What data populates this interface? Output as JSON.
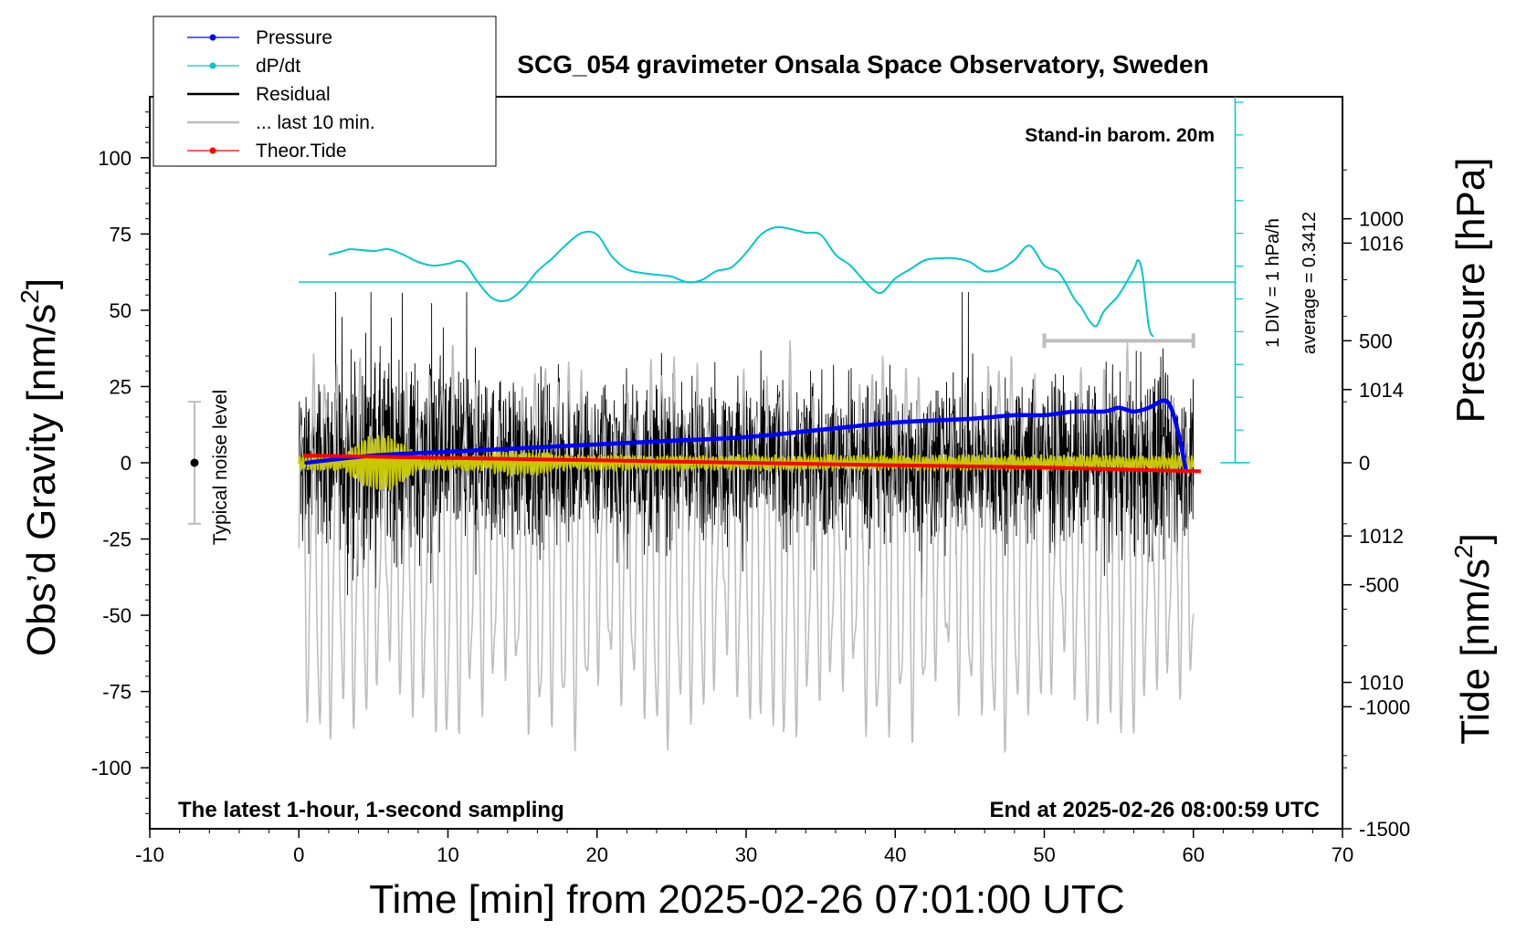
{
  "chart_data": {
    "type": "line",
    "title": "SCG_054 gravimeter Onsala Space Observatory, Sweden",
    "xlabel": "Time [min] from 2025-02-26 07:01:00 UTC",
    "xlim": [
      -10,
      70
    ],
    "xticks": [
      "-10",
      "0",
      "10",
      "20",
      "30",
      "40",
      "50",
      "60",
      "70"
    ],
    "y_left": {
      "label_main": "Obs’d Gravity [nm/s",
      "label_sup": "2",
      "label_end": "]",
      "ylim": [
        -120,
        120
      ],
      "ticks": [
        "100",
        "75",
        "50",
        "25",
        "0",
        "-25",
        "-50",
        "-75",
        "-100"
      ]
    },
    "y_pressure": {
      "label": "Pressure [hPa]",
      "ylim": [
        1008,
        1018
      ],
      "ticks": [
        "1016",
        "1014",
        "1012",
        "1010"
      ]
    },
    "y_tide": {
      "label_main": "Tide [nm/s",
      "label_sup": "2",
      "label_end": "]",
      "ylim": [
        -1500,
        1500
      ],
      "ticks": [
        "1000",
        "500",
        "0",
        "-500",
        "-1000",
        "-1500"
      ]
    },
    "legend": {
      "placement": "top-left",
      "entries": [
        {
          "name": "Pressure",
          "color": "#0000ff",
          "marker": true
        },
        {
          "name": "dP/dt",
          "color": "#00c8c8",
          "marker": true
        },
        {
          "name": "Residual",
          "color": "#000000",
          "marker": false
        },
        {
          "name": "... last 10 min.",
          "color": "#bebebe",
          "marker": false
        },
        {
          "name": "Theor.Tide",
          "color": "#ff0000",
          "marker": true
        }
      ]
    },
    "annotations": {
      "barometer": "Stand-in barom. 20m",
      "div_label": "1 DIV = 1 hPa/h",
      "average_label": "average = 0.3412",
      "noise_label": "Typical noise level",
      "bottom_left": "The latest 1-hour, 1-second sampling",
      "bottom_right": "End at 2025-02-26 08:00:59 UTC"
    },
    "noise_bar": {
      "x": -7,
      "center": 0,
      "half_range": 20
    },
    "pressure_series": {
      "x": [
        0.5,
        5,
        10,
        15,
        20,
        25,
        30,
        35,
        40,
        45,
        48,
        50,
        52,
        54,
        55,
        56,
        57,
        58,
        58.5,
        59,
        59.5
      ],
      "values": [
        1013.0,
        1013.1,
        1013.15,
        1013.2,
        1013.25,
        1013.3,
        1013.35,
        1013.45,
        1013.55,
        1013.6,
        1013.65,
        1013.65,
        1013.7,
        1013.7,
        1013.75,
        1013.7,
        1013.75,
        1013.85,
        1013.75,
        1013.4,
        1012.9
      ]
    },
    "dpdt_series": {
      "x": [
        2,
        3,
        3.5,
        5,
        6,
        7,
        8,
        9,
        10,
        11,
        12,
        13,
        14,
        15,
        16,
        17,
        18,
        19,
        20,
        21,
        22,
        23,
        24,
        25,
        26,
        27,
        28,
        29,
        30,
        31,
        32,
        33,
        34,
        35,
        36,
        37,
        38,
        39,
        40,
        41,
        42,
        43,
        44,
        45,
        46,
        47,
        48,
        49,
        50,
        51,
        52,
        52.5,
        53,
        53.5,
        54,
        55,
        56,
        56.3,
        56.6,
        57,
        57.3
      ],
      "values": [
        0.75,
        0.85,
        0.9,
        0.85,
        0.9,
        0.75,
        0.55,
        0.45,
        0.5,
        0.55,
        0.0,
        -0.45,
        -0.5,
        -0.2,
        0.3,
        0.65,
        1.05,
        1.35,
        1.3,
        0.7,
        0.35,
        0.25,
        0.2,
        0.15,
        0.0,
        0.05,
        0.3,
        0.4,
        0.8,
        1.3,
        1.5,
        1.45,
        1.35,
        1.3,
        0.75,
        0.45,
        0.0,
        -0.3,
        0.1,
        0.35,
        0.6,
        0.65,
        0.65,
        0.55,
        0.3,
        0.35,
        0.6,
        1.0,
        0.45,
        0.25,
        -0.45,
        -0.7,
        -1.05,
        -1.2,
        -0.8,
        -0.35,
        0.35,
        0.6,
        0.2,
        -1.2,
        -1.5
      ]
    },
    "tide_series": {
      "x": [
        0.3,
        10,
        20,
        30,
        40,
        50,
        60.5
      ],
      "values": [
        30,
        20,
        10,
        0,
        -10,
        -20,
        -35
      ]
    },
    "gray_marker": {
      "x_start": 50,
      "x_end": 60,
      "value": 500
    },
    "residual_series": {
      "x_start": 0,
      "x_end": 60,
      "n_points": 3600,
      "amplitude": 20
    },
    "filtered_series": {
      "x_start": 0,
      "x_end": 60,
      "amplitude": 2
    },
    "last10_series": {
      "x_start": 0,
      "x_end": 60,
      "amplitude": 600
    }
  }
}
